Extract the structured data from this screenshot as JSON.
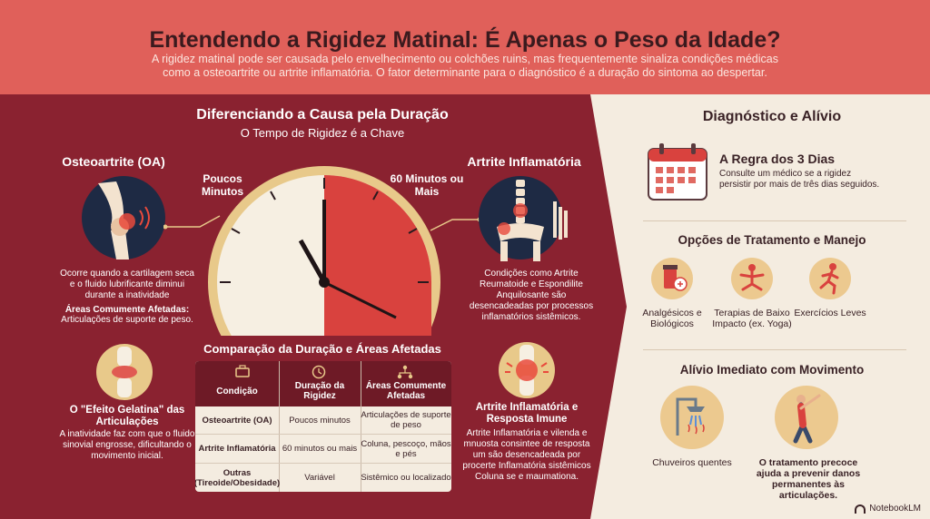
{
  "header": {
    "title": "Entendendo a Rigidez Matinal: É Apenas o Peso da Idade?",
    "subtitle": "A rigidez matinal pode ser causada pelo envelhecimento ou colchões ruins, mas frequentemente sinaliza condições médicas como a osteoartrite ou artrite inflamatória. O fator determinante para o diagnóstico é a duração do sintoma ao despertar."
  },
  "left": {
    "title": "Diferenciando a Causa pela Duração",
    "subtitle": "O Tempo de Rigidez é a Chave",
    "oa": {
      "title": "Osteoartrite (OA)",
      "desc": "Ocorre quando a cartilagem seca e o fluido lubrificante diminui durante a inatividade",
      "areas_label": "Áreas Comumente Afetadas:",
      "areas": "Articulações de suporte de peso."
    },
    "ai": {
      "title": "Artrite Inflamatória",
      "desc": "Condições como Artrite Reumatoide e Espondilite Anquilosante são desencadeadas por processos inflamatórios sistêmicos."
    },
    "clock": {
      "left_label": "Poucos Minutos",
      "right_label": "60 Minutos ou Mais"
    },
    "gel": {
      "title": "O \"Efeito Gelatina\" das Articulações",
      "desc": "A inatividade faz com que o fluido sinovial engrosse, dificultando o movimento inicial."
    },
    "immune": {
      "title": "Artrite Inflamatória e Resposta Imune",
      "desc": "Artrite Inflamatória e vilenda e mnuosta consintee de resposta um são desencadeada por procerte Inflamatória sistêmicos Coluna se e maumationa."
    },
    "table": {
      "title": "Comparação da Duração e Áreas Afetadas",
      "headers": [
        "Condição",
        "Duração da Rigidez",
        "Áreas Comumente Afetadas"
      ],
      "rows": [
        [
          "Osteoartrite (OA)",
          "Poucos minutos",
          "Articulações de suporte de peso"
        ],
        [
          "Artrite Inflamatória",
          "60 minutos ou mais",
          "Coluna, pescoço, mãos e pés"
        ],
        [
          "Outras (Tireoide/Obesidade)",
          "Variável",
          "Sistêmico ou localizado"
        ]
      ]
    }
  },
  "right": {
    "title": "Diagnóstico e Alívio",
    "rule": {
      "title": "A Regra dos 3 Dias",
      "desc": "Consulte um médico se a rigidez persistir por mais de três dias seguidos."
    },
    "treatment": {
      "title": "Opções de Tratamento e Manejo",
      "items": [
        "Analgésicos e Biológicos",
        "Terapias de Baixo Impacto (ex. Yoga)",
        "Exercícios Leves"
      ]
    },
    "relief": {
      "title": "Alívio Imediato com Movimento",
      "items": [
        "Chuveiros quentes",
        "O tratamento precoce ajuda a prevenir danos permanentes às articulações."
      ]
    }
  },
  "footer": {
    "brand": "NotebookLM"
  },
  "colors": {
    "header": "#e0605a",
    "panel": "#8a2230",
    "cream": "#f4ece0",
    "accent": "#d9423e",
    "gold": "#e8c98a"
  }
}
